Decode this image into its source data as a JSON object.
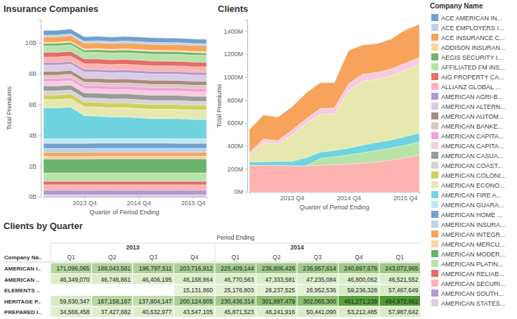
{
  "chart_data": [
    {
      "type": "area",
      "stacked": true,
      "title": "Insurance Companies",
      "y_label": "Total Premiums",
      "x_label": "Quarter of Period Ending",
      "legend": "right",
      "legend_title": "Company Name",
      "categories": [
        null,
        null,
        null,
        "2013 Q4",
        null,
        null,
        null,
        "2014 Q4",
        null,
        null,
        null,
        "2015 Q4",
        null
      ],
      "ylim": [
        0,
        11.5
      ],
      "yticks": [
        {
          "value": 0,
          "label": "0B"
        },
        {
          "value": 2,
          "label": "2B"
        },
        {
          "value": 4,
          "label": "4B"
        },
        {
          "value": 6,
          "label": "6B"
        },
        {
          "value": 8,
          "label": "8B"
        },
        {
          "value": 10,
          "label": "10B"
        }
      ],
      "series": [
        {
          "name": "ACE AMERICAN IN...",
          "color": "#6fa0cf",
          "values": [
            0.3,
            0.3,
            0.31,
            0.3,
            0.3,
            0.3,
            0.3,
            0.3,
            0.3,
            0.29,
            0.29,
            0.29,
            0.29
          ]
        },
        {
          "name": "ACE EMPLOYERS I...",
          "color": "#b9d3ea",
          "values": [
            0.12,
            0.12,
            0.12,
            0.12,
            0.13,
            0.13,
            0.13,
            0.13,
            0.13,
            0.13,
            0.13,
            0.13,
            0.13
          ]
        },
        {
          "name": "ACE INSURANCE C...",
          "color": "#f7a35c",
          "values": [
            0.35,
            0.35,
            0.36,
            0.36,
            0.37,
            0.37,
            0.37,
            0.38,
            0.38,
            0.38,
            0.38,
            0.38,
            0.38
          ]
        },
        {
          "name": "ADDISON INSURAN...",
          "color": "#ffd3a0",
          "values": [
            0.08,
            0.08,
            0.08,
            0.08,
            0.08,
            0.08,
            0.09,
            0.09,
            0.09,
            0.09,
            0.09,
            0.09,
            0.09
          ]
        },
        {
          "name": "AEGIS SECURITY I...",
          "color": "#6cb36e",
          "values": [
            0.15,
            0.15,
            0.15,
            0.15,
            0.16,
            0.16,
            0.16,
            0.16,
            0.16,
            0.16,
            0.16,
            0.16,
            0.15
          ]
        },
        {
          "name": "AFFILIATED FM INS...",
          "color": "#b8e3a8",
          "values": [
            0.42,
            0.42,
            0.43,
            0.43,
            0.44,
            0.44,
            0.45,
            0.45,
            0.45,
            0.45,
            0.45,
            0.45,
            0.45
          ]
        },
        {
          "name": "AIG PROPERTY CA...",
          "color": "#e36d6a",
          "values": [
            0.3,
            0.31,
            0.31,
            0.31,
            0.31,
            0.31,
            0.31,
            0.31,
            0.31,
            0.3,
            0.3,
            0.3,
            0.3
          ]
        },
        {
          "name": "ALLIANZ GLOBAL ...",
          "color": "#ffb3b0",
          "values": [
            0.35,
            0.35,
            0.35,
            0.36,
            0.36,
            0.36,
            0.36,
            0.36,
            0.36,
            0.36,
            0.36,
            0.36,
            0.36
          ]
        },
        {
          "name": "AMERICAN AGRI-B...",
          "color": "#b497d0",
          "values": [
            0.18,
            0.18,
            0.18,
            0.18,
            0.18,
            0.18,
            0.18,
            0.18,
            0.18,
            0.18,
            0.18,
            0.18,
            0.18
          ]
        },
        {
          "name": "AMERICAN ALTERN...",
          "color": "#d9cce6",
          "values": [
            0.4,
            0.4,
            0.4,
            0.41,
            0.41,
            0.41,
            0.41,
            0.41,
            0.41,
            0.41,
            0.41,
            0.41,
            0.4
          ]
        },
        {
          "name": "AMERICAN AUTOM...",
          "color": "#a88b80",
          "values": [
            0.25,
            0.25,
            0.25,
            0.25,
            0.26,
            0.26,
            0.26,
            0.26,
            0.26,
            0.26,
            0.26,
            0.26,
            0.26
          ]
        },
        {
          "name": "AMERICAN BANKE...",
          "color": "#dcc7be",
          "values": [
            0.2,
            0.2,
            0.2,
            0.2,
            0.2,
            0.2,
            0.2,
            0.2,
            0.2,
            0.2,
            0.2,
            0.2,
            0.2
          ]
        },
        {
          "name": "AMERICAN CAPITA...",
          "color": "#f0a4d5",
          "values": [
            0.22,
            0.22,
            0.22,
            0.22,
            0.22,
            0.22,
            0.23,
            0.23,
            0.23,
            0.23,
            0.23,
            0.23,
            0.23
          ]
        },
        {
          "name": "AMERICAN CAPITA...",
          "color": "#f8cbe0",
          "values": [
            0.28,
            0.28,
            0.28,
            0.28,
            0.28,
            0.28,
            0.28,
            0.28,
            0.28,
            0.28,
            0.28,
            0.28,
            0.28
          ]
        },
        {
          "name": "AMERICAN CASUA...",
          "color": "#9a9a9a",
          "values": [
            0.32,
            0.32,
            0.32,
            0.32,
            0.33,
            0.33,
            0.33,
            0.33,
            0.33,
            0.33,
            0.33,
            0.33,
            0.33
          ]
        },
        {
          "name": "AMERICAN COAST...",
          "color": "#d5d5d5",
          "values": [
            0.26,
            0.26,
            0.26,
            0.26,
            0.26,
            0.26,
            0.26,
            0.26,
            0.26,
            0.26,
            0.26,
            0.26,
            0.26
          ]
        },
        {
          "name": "AMERICAN COLONI...",
          "color": "#cfcf5e",
          "values": [
            0.3,
            0.3,
            0.3,
            0.31,
            0.31,
            0.31,
            0.31,
            0.31,
            0.31,
            0.31,
            0.31,
            0.31,
            0.31
          ]
        },
        {
          "name": "AMERICAN ECONO...",
          "color": "#e6e8b0",
          "values": [
            0.55,
            0.55,
            0.56,
            0.58,
            0.6,
            0.6,
            0.61,
            0.61,
            0.61,
            0.61,
            0.61,
            0.61,
            0.61
          ]
        },
        {
          "name": "AMERICAN FIRE A...",
          "color": "#6fd3e0",
          "values": [
            2.0,
            2.0,
            2.05,
            1.5,
            1.45,
            1.4,
            1.4,
            1.35,
            1.3,
            1.3,
            1.3,
            1.25,
            1.25
          ]
        },
        {
          "name": "AMERICAN GUARA...",
          "color": "#bfe8ef",
          "values": [
            0.3,
            0.3,
            0.3,
            0.3,
            0.3,
            0.3,
            0.3,
            0.3,
            0.3,
            0.3,
            0.3,
            0.3,
            0.3
          ]
        },
        {
          "name": "AMERICAN HOME ...",
          "color": "#6fa0cf",
          "values": [
            0.33,
            0.33,
            0.33,
            0.33,
            0.33,
            0.33,
            0.33,
            0.33,
            0.33,
            0.33,
            0.32,
            0.32,
            0.32
          ]
        },
        {
          "name": "AMERICAN INSURA...",
          "color": "#b9d3ea",
          "values": [
            0.27,
            0.27,
            0.27,
            0.27,
            0.27,
            0.27,
            0.27,
            0.27,
            0.27,
            0.27,
            0.27,
            0.27,
            0.27
          ]
        },
        {
          "name": "AMERICAN INTEGR...",
          "color": "#f7a35c",
          "values": [
            0.24,
            0.24,
            0.24,
            0.24,
            0.24,
            0.24,
            0.24,
            0.24,
            0.24,
            0.24,
            0.24,
            0.24,
            0.24
          ]
        },
        {
          "name": "AMERICAN MERCU...",
          "color": "#ffd3a0",
          "values": [
            0.18,
            0.18,
            0.18,
            0.18,
            0.18,
            0.18,
            0.18,
            0.18,
            0.18,
            0.18,
            0.18,
            0.18,
            0.18
          ]
        },
        {
          "name": "AMERICAN MODER...",
          "color": "#6cb36e",
          "values": [
            0.9,
            0.9,
            0.9,
            0.9,
            0.91,
            0.91,
            0.91,
            0.91,
            0.91,
            0.91,
            0.91,
            0.91,
            0.91
          ]
        },
        {
          "name": "AMERICAN PLATIN...",
          "color": "#b8e3a8",
          "values": [
            0.55,
            0.55,
            0.55,
            0.55,
            0.55,
            0.55,
            0.55,
            0.55,
            0.55,
            0.55,
            0.55,
            0.55,
            0.55
          ]
        },
        {
          "name": "AMERICAN RELIAB...",
          "color": "#e36d6a",
          "values": [
            0.22,
            0.22,
            0.22,
            0.22,
            0.22,
            0.22,
            0.22,
            0.22,
            0.22,
            0.22,
            0.22,
            0.22,
            0.22
          ]
        },
        {
          "name": "AMERICAN SECURI...",
          "color": "#ffb3b0",
          "values": [
            0.35,
            0.35,
            0.35,
            0.35,
            0.35,
            0.35,
            0.35,
            0.35,
            0.35,
            0.35,
            0.35,
            0.35,
            0.35
          ]
        },
        {
          "name": "AMERICAN SOUTH...",
          "color": "#b497d0",
          "values": [
            0.3,
            0.3,
            0.3,
            0.3,
            0.3,
            0.3,
            0.3,
            0.3,
            0.3,
            0.3,
            0.3,
            0.3,
            0.3
          ]
        },
        {
          "name": "AMERICAN STATES...",
          "color": "#d9cce6",
          "values": [
            0.12,
            0.12,
            0.12,
            0.12,
            0.12,
            0.12,
            0.12,
            0.12,
            0.12,
            0.12,
            0.12,
            0.12,
            0.12
          ]
        }
      ]
    },
    {
      "type": "area",
      "stacked": true,
      "title": "Clients",
      "y_label": "Total Premiums",
      "x_label": "Quarter of Period Ending",
      "categories": [
        null,
        null,
        null,
        "2013 Q4",
        null,
        null,
        null,
        "2014 Q4",
        null,
        null,
        null,
        "2015 Q4",
        null
      ],
      "ylim": [
        0,
        1500
      ],
      "yticks": [
        {
          "value": 0,
          "label": "0M"
        },
        {
          "value": 200,
          "label": "200M"
        },
        {
          "value": 400,
          "label": "400M"
        },
        {
          "value": 600,
          "label": "600M"
        },
        {
          "value": 800,
          "label": "800M"
        },
        {
          "value": 1000,
          "label": "1000M"
        },
        {
          "value": 1200,
          "label": "1200M"
        },
        {
          "value": 1400,
          "label": "1400M"
        }
      ],
      "series": [
        {
          "color": "#f7a35c",
          "values": [
            200,
            210,
            205,
            205,
            225,
            225,
            220,
            290,
            255,
            250,
            260,
            290,
            290
          ]
        },
        {
          "color": "#f8cbe0",
          "values": [
            20,
            30,
            30,
            40,
            40,
            50,
            50,
            60,
            60,
            60,
            60,
            60,
            60
          ]
        },
        {
          "color": "#e6e8b0",
          "values": [
            60,
            170,
            150,
            230,
            300,
            330,
            320,
            500,
            560,
            550,
            560,
            580,
            600
          ]
        },
        {
          "color": "#6fd3e0",
          "values": [
            30,
            30,
            35,
            40,
            70,
            55,
            55,
            60,
            65,
            70,
            70,
            75,
            75
          ]
        },
        {
          "color": "#b8e3a8",
          "values": [
            0,
            0,
            0,
            0,
            0,
            60,
            70,
            80,
            90,
            100,
            105,
            110,
            115
          ]
        },
        {
          "color": "#ffb3b0",
          "values": [
            230,
            230,
            230,
            225,
            225,
            230,
            235,
            240,
            250,
            260,
            275,
            295,
            320
          ]
        }
      ]
    }
  ],
  "table": {
    "title": "Clients by Quarter",
    "header": "Period Ending",
    "row_header": "Company Na..",
    "years": [
      "2013",
      "2013",
      "2013",
      "2013",
      "2014",
      "2014",
      "2014",
      "2014",
      null
    ],
    "columns": [
      "Q1",
      "Q2",
      "Q3",
      "Q4",
      "Q1",
      "Q2",
      "Q3",
      "Q4",
      "Q1"
    ],
    "rows": [
      {
        "label": "AMERICAN I..",
        "cells": [
          {
            "value": 171096065,
            "label": "171,096,065"
          },
          {
            "value": 188043581,
            "label": "188,043,581"
          },
          {
            "value": 196797511,
            "label": "196,797,511"
          },
          {
            "value": 203716912,
            "label": "203,716,912"
          },
          {
            "value": 225409144,
            "label": "225,409,144"
          },
          {
            "value": 236806426,
            "label": "236,806,426"
          },
          {
            "value": 236957614,
            "label": "236,957,614"
          },
          {
            "value": 240697676,
            "label": "240,697,676"
          },
          {
            "value": 243072965,
            "label": "243,072,965"
          }
        ]
      },
      {
        "label": "AMERICAN ..",
        "cells": [
          {
            "value": 46349070,
            "label": "46,349,070"
          },
          {
            "value": 46746861,
            "label": "46,746,861"
          },
          {
            "value": 46406195,
            "label": "46,406,195"
          },
          {
            "value": 46168864,
            "label": "46,168,864"
          },
          {
            "value": 46770563,
            "label": "46,770,563"
          },
          {
            "value": 47333581,
            "label": "47,333,581"
          },
          {
            "value": 47235084,
            "label": "47,235,084"
          },
          {
            "value": 46800062,
            "label": "46,800,062"
          },
          {
            "value": 46521552,
            "label": "46,521,552"
          }
        ]
      },
      {
        "label": "ELEMENTS ..",
        "cells": [
          null,
          null,
          null,
          {
            "value": 15131860,
            "label": "15,131,860"
          },
          {
            "value": 25176803,
            "label": "25,176,803"
          },
          {
            "value": 28237525,
            "label": "28,237,525"
          },
          {
            "value": 26952536,
            "label": "26,952,536"
          },
          {
            "value": 59236328,
            "label": "59,236,328"
          },
          {
            "value": 57467649,
            "label": "57,467,649"
          }
        ]
      },
      {
        "label": "HERITAGE P..",
        "cells": [
          {
            "value": 59830347,
            "label": "59,830,347"
          },
          {
            "value": 167158167,
            "label": "167,158,167"
          },
          {
            "value": 137804147,
            "label": "137,804,147"
          },
          {
            "value": 200124605,
            "label": "200,124,605"
          },
          {
            "value": 230436314,
            "label": "230,436,314"
          },
          {
            "value": 301897479,
            "label": "301,897,479"
          },
          {
            "value": 302065300,
            "label": "302,065,300"
          },
          {
            "value": 461271239,
            "label": "461,271,239"
          },
          {
            "value": 494972662,
            "label": "494,972,662"
          }
        ]
      },
      {
        "label": "PREPARED I..",
        "cells": [
          {
            "value": 34566458,
            "label": "34,566,458"
          },
          {
            "value": 37427682,
            "label": "37,427,682"
          },
          {
            "value": 40632977,
            "label": "40,632,977"
          },
          {
            "value": 43547105,
            "label": "43,547,105"
          },
          {
            "value": 45871523,
            "label": "45,871,523"
          },
          {
            "value": 48241916,
            "label": "48,241,916"
          },
          {
            "value": 50441090,
            "label": "50,441,090"
          },
          {
            "value": 53212485,
            "label": "53,212,485"
          },
          {
            "value": 57987642,
            "label": "57,987,642"
          }
        ]
      }
    ]
  }
}
